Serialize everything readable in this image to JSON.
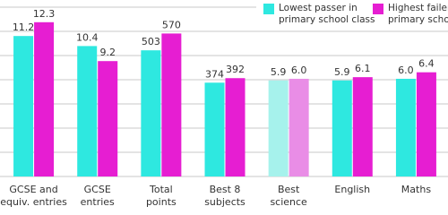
{
  "chart_data": {
    "type": "bar",
    "categories": [
      [
        "GCSE and",
        "equiv. entries"
      ],
      [
        "GCSE",
        "entries"
      ],
      [
        "Total",
        "points"
      ],
      [
        "Best 8",
        "subjects"
      ],
      [
        "Best",
        "science"
      ],
      [
        "English"
      ],
      [
        "Maths"
      ]
    ],
    "ylims": [
      [
        0,
        13.5
      ],
      [
        0,
        13.5
      ],
      [
        0,
        675
      ],
      [
        0,
        675
      ],
      [
        0,
        10.4
      ],
      [
        0,
        10.4
      ],
      [
        0,
        10.4
      ]
    ],
    "series": [
      {
        "name": [
          "Lowest passer in",
          "primary school class"
        ],
        "color": "#2ee8e0",
        "colors": [
          "#2ee8e0",
          "#2ee8e0",
          "#2ee8e0",
          "#2ee8e0",
          "#a6f2ec",
          "#2ee8e0",
          "#2ee8e0"
        ],
        "values": [
          11.2,
          10.4,
          503,
          374,
          5.9,
          5.9,
          6.0
        ],
        "value_labels": [
          "11.2",
          "10.4",
          "503",
          "374",
          "5.9",
          "5.9",
          "6.0"
        ]
      },
      {
        "name": [
          "Highest failer in",
          "primary school class"
        ],
        "color": "#e61ed2",
        "colors": [
          "#e61ed2",
          "#e61ed2",
          "#e61ed2",
          "#e61ed2",
          "#e98de6",
          "#e61ed2",
          "#e61ed2"
        ],
        "values": [
          12.3,
          9.2,
          570,
          392,
          6.0,
          6.1,
          6.4
        ],
        "value_labels": [
          "12.3",
          "9.2",
          "570",
          "392",
          "6.0",
          "6.1",
          "6.4"
        ]
      }
    ],
    "grid": true,
    "legend": "top-right"
  }
}
